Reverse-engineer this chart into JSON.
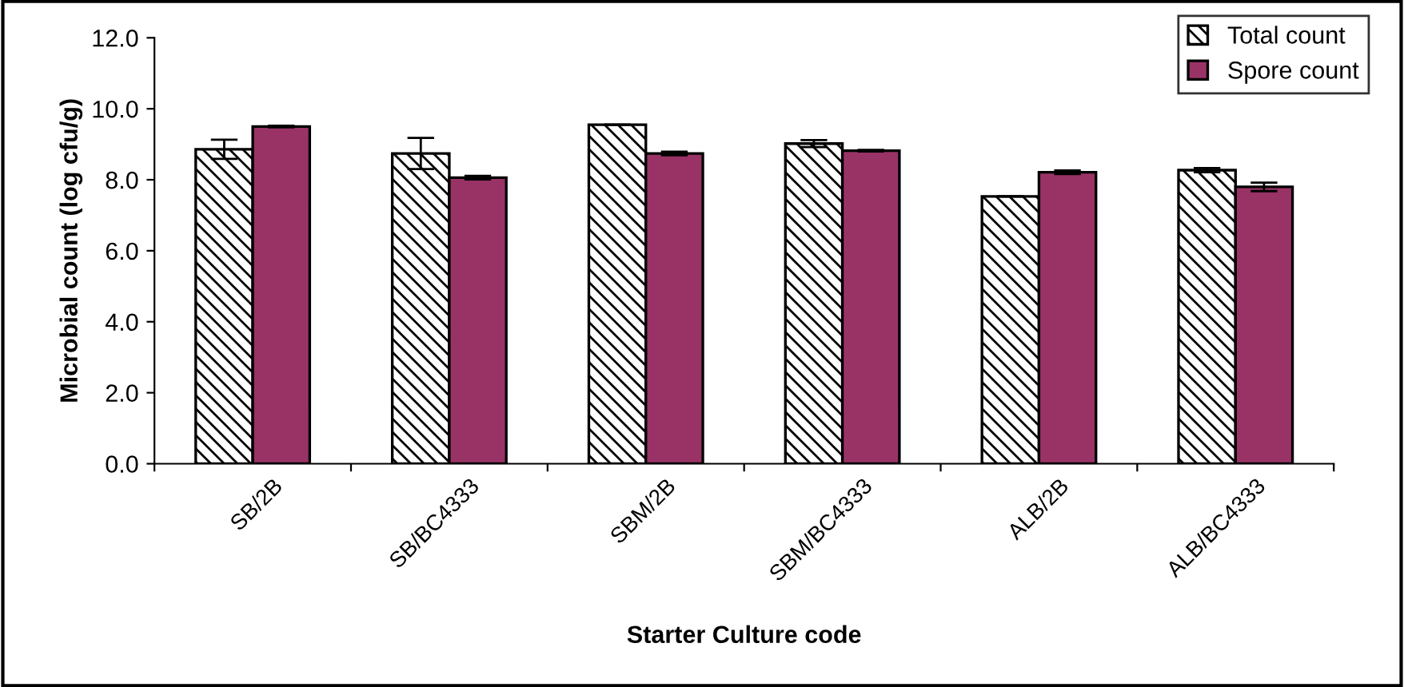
{
  "chart_data": {
    "type": "bar",
    "xlabel": "Starter Culture code",
    "ylabel": "Microbial count (log cfu/g)",
    "categories": [
      "SB/2B",
      "SB/BC4333",
      "SBM/2B",
      "SBM/BC4333",
      "ALB/2B",
      "ALB/BC4333"
    ],
    "series": [
      {
        "name": "Total count",
        "color": "#000000",
        "values": [
          8.86,
          8.74,
          9.55,
          9.02,
          7.53,
          8.27
        ],
        "errors": [
          0.27,
          0.44,
          0,
          0.1,
          0,
          0.06
        ]
      },
      {
        "name": "Spore count",
        "color": "#993366",
        "values": [
          9.5,
          8.06,
          8.74,
          8.82,
          8.21,
          7.8
        ],
        "errors": [
          0.02,
          0.05,
          0.05,
          0.02,
          0.05,
          0.12
        ]
      }
    ],
    "ylim": [
      0,
      12
    ],
    "yticks": [
      {
        "value": 0,
        "label": "0.0"
      },
      {
        "value": 2,
        "label": "2.0"
      },
      {
        "value": 4,
        "label": "4.0"
      },
      {
        "value": 6,
        "label": "6.0"
      },
      {
        "value": 8,
        "label": "8.0"
      },
      {
        "value": 10,
        "label": "10.0"
      },
      {
        "value": 12,
        "label": "12.0"
      }
    ],
    "legend": "top right",
    "grid": false
  }
}
